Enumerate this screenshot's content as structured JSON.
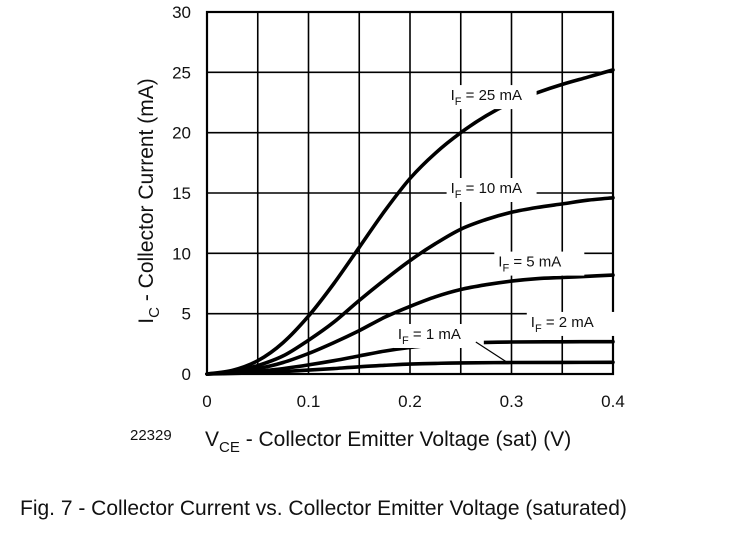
{
  "chart_data": {
    "type": "line",
    "xlabel": {
      "main": "V",
      "sub": "CE",
      "rest": " - Collector Emitter Voltage (sat) (V)"
    },
    "ylabel": {
      "main": "I",
      "sub": "C",
      "rest": " - Collector Current (mA)"
    },
    "xlim": [
      0,
      0.4
    ],
    "ylim": [
      0,
      30
    ],
    "xticks": [
      "0",
      "0.1",
      "0.2",
      "0.3",
      "0.4"
    ],
    "yticks": [
      "0",
      "5",
      "10",
      "15",
      "20",
      "25",
      "30"
    ],
    "grid": true,
    "series": [
      {
        "name": "IF = 25 mA",
        "label": {
          "main": "I",
          "sub": "F",
          "rest": " = 25 mA"
        },
        "x": [
          0,
          0.025,
          0.05,
          0.075,
          0.1,
          0.125,
          0.15,
          0.175,
          0.2,
          0.225,
          0.25,
          0.275,
          0.3,
          0.325,
          0.35,
          0.375,
          0.4
        ],
        "y": [
          0,
          0.3,
          1.1,
          2.6,
          4.8,
          7.5,
          10.5,
          13.5,
          16.2,
          18.3,
          20.0,
          21.4,
          22.5,
          23.3,
          24.0,
          24.6,
          25.2
        ]
      },
      {
        "name": "IF = 10 mA",
        "label": {
          "main": "I",
          "sub": "F",
          "rest": " = 10 mA"
        },
        "x": [
          0,
          0.025,
          0.05,
          0.075,
          0.1,
          0.125,
          0.15,
          0.175,
          0.2,
          0.225,
          0.25,
          0.275,
          0.3,
          0.325,
          0.35,
          0.375,
          0.4
        ],
        "y": [
          0,
          0.2,
          0.7,
          1.5,
          2.8,
          4.3,
          6.1,
          7.8,
          9.4,
          10.8,
          12.0,
          12.8,
          13.4,
          13.8,
          14.1,
          14.4,
          14.6
        ]
      },
      {
        "name": "IF = 5 mA",
        "label": {
          "main": "I",
          "sub": "F",
          "rest": " = 5 mA"
        },
        "x": [
          0,
          0.025,
          0.05,
          0.075,
          0.1,
          0.125,
          0.15,
          0.175,
          0.2,
          0.225,
          0.25,
          0.275,
          0.3,
          0.325,
          0.35,
          0.375,
          0.4
        ],
        "y": [
          0,
          0.15,
          0.45,
          0.95,
          1.7,
          2.6,
          3.6,
          4.7,
          5.6,
          6.4,
          7.0,
          7.4,
          7.7,
          7.9,
          8.0,
          8.1,
          8.2
        ]
      },
      {
        "name": "IF = 2 mA",
        "label": {
          "main": "I",
          "sub": "F",
          "rest": " = 2 mA"
        },
        "x": [
          0,
          0.025,
          0.05,
          0.075,
          0.1,
          0.125,
          0.15,
          0.175,
          0.2,
          0.225,
          0.25,
          0.275,
          0.3,
          0.35,
          0.4
        ],
        "y": [
          0,
          0.08,
          0.22,
          0.45,
          0.75,
          1.1,
          1.5,
          1.9,
          2.2,
          2.4,
          2.55,
          2.62,
          2.65,
          2.67,
          2.68
        ]
      },
      {
        "name": "IF = 1 mA",
        "label": {
          "main": "I",
          "sub": "F",
          "rest": " = 1 mA"
        },
        "x": [
          0,
          0.025,
          0.05,
          0.075,
          0.1,
          0.125,
          0.15,
          0.175,
          0.2,
          0.225,
          0.25,
          0.3,
          0.35,
          0.4
        ],
        "y": [
          0,
          0.04,
          0.1,
          0.2,
          0.32,
          0.45,
          0.6,
          0.72,
          0.82,
          0.88,
          0.92,
          0.95,
          0.96,
          0.97
        ]
      }
    ],
    "annotations": [
      {
        "text_main": "I",
        "text_sub": "F",
        "text_rest": " = 25 mA",
        "series": 0,
        "anchor_x": 0.24,
        "anchor_y": 22.7
      },
      {
        "text_main": "I",
        "text_sub": "F",
        "text_rest": " = 10 mA",
        "series": 1,
        "anchor_x": 0.24,
        "anchor_y": 15.0
      },
      {
        "text_main": "I",
        "text_sub": "F",
        "text_rest": " = 5 mA",
        "series": 2,
        "anchor_x": 0.287,
        "anchor_y": 8.9
      },
      {
        "text_main": "I",
        "text_sub": "F",
        "text_rest": " = 2 mA",
        "series": 3,
        "anchor_x": 0.319,
        "anchor_y": 3.9
      },
      {
        "text_main": "I",
        "text_sub": "F",
        "text_rest": " = 1 mA",
        "series": 4,
        "anchor_x": 0.188,
        "anchor_y": 2.9,
        "leader_to_x": 0.295,
        "leader_to_y": 1.0
      }
    ]
  },
  "figure_number": "22329",
  "caption": "Fig. 7 - Collector Current vs. Collector Emitter Voltage (saturated)"
}
